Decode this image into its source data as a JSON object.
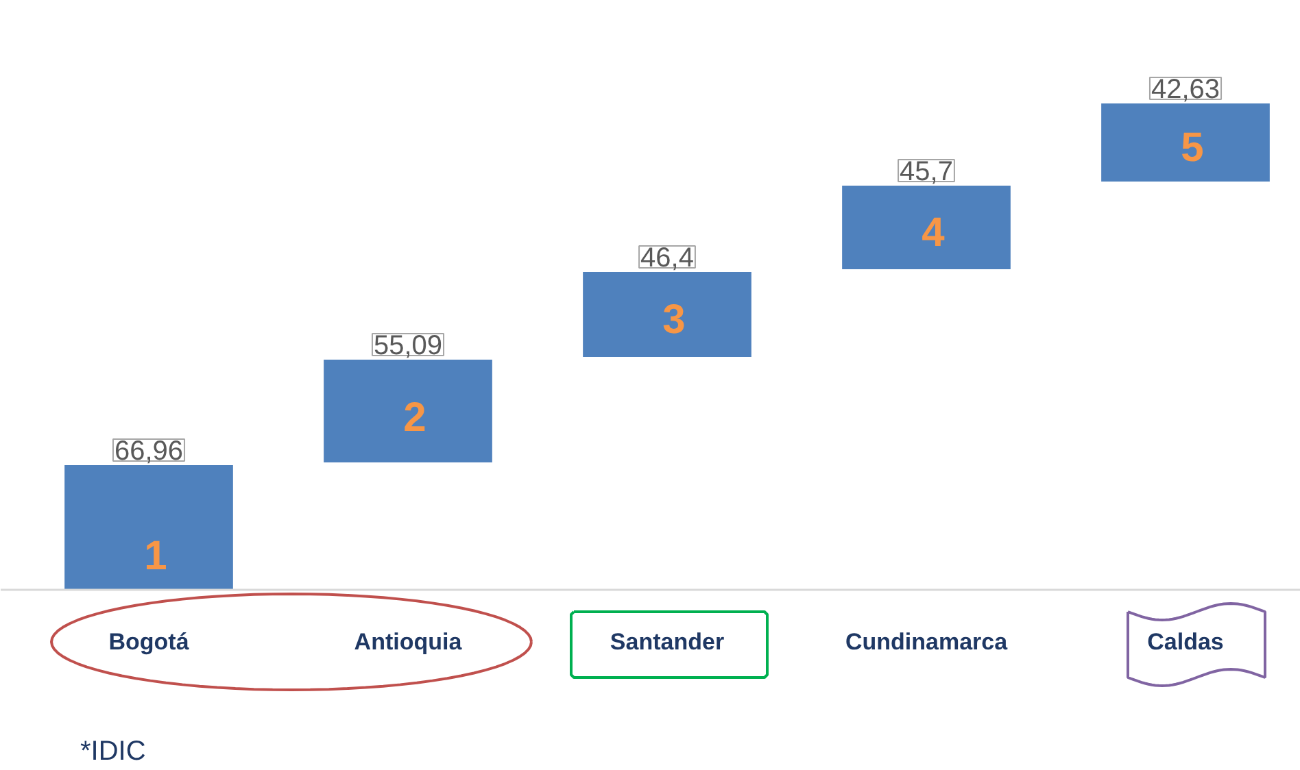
{
  "chart_data": {
    "type": "other",
    "categories": [
      "Bogotá",
      "Antioquia",
      "Santander",
      "Cundinamarca",
      "Caldas"
    ],
    "values": [
      66.96,
      55.09,
      46.4,
      45.7,
      42.63
    ],
    "color": "#4f81bd",
    "value_labels": [
      "66,96",
      "55,09",
      "46,4",
      "45,7",
      "42,63"
    ],
    "annotations": [
      "1",
      "2",
      "3",
      "4",
      "5",
      "*IDIC"
    ]
  }
}
